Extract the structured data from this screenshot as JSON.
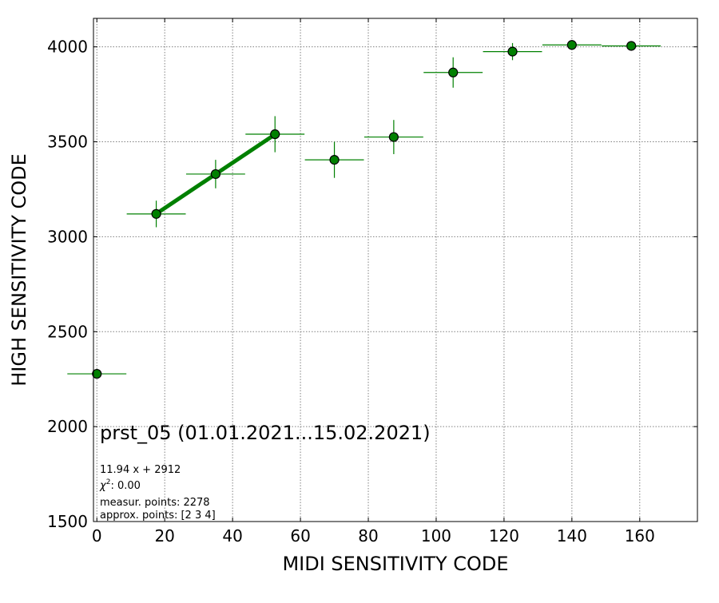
{
  "chart_data": {
    "type": "scatter",
    "title": "prst_05 (01.01.2021...15.02.2021)",
    "xlabel": "MIDI SENSITIVITY CODE",
    "ylabel": "HIGH SENSITIVITY CODE",
    "xlim": [
      -1,
      177
    ],
    "ylim": [
      1500,
      4150
    ],
    "xticks": [
      0,
      20,
      40,
      60,
      80,
      100,
      120,
      140,
      160
    ],
    "yticks": [
      1500,
      2000,
      2500,
      3000,
      3500,
      4000
    ],
    "grid": true,
    "colors": {
      "marker_fill": "#008000",
      "marker_edge": "#000000",
      "errorbar": "#008000",
      "fit_line": "#008000",
      "grid": "#808080"
    },
    "series": [
      {
        "points": [
          {
            "x": 0,
            "y": 2278,
            "xerr": 8.7,
            "yerr": 0
          },
          {
            "x": 17.5,
            "y": 3120,
            "xerr": 8.7,
            "yerr": 70
          },
          {
            "x": 35,
            "y": 3330,
            "xerr": 8.7,
            "yerr": 75
          },
          {
            "x": 52.5,
            "y": 3540,
            "xerr": 8.7,
            "yerr": 95
          },
          {
            "x": 70,
            "y": 3405,
            "xerr": 8.7,
            "yerr": 95
          },
          {
            "x": 87.5,
            "y": 3525,
            "xerr": 8.7,
            "yerr": 90
          },
          {
            "x": 105,
            "y": 3865,
            "xerr": 8.7,
            "yerr": 80
          },
          {
            "x": 122.5,
            "y": 3975,
            "xerr": 8.7,
            "yerr": 45
          },
          {
            "x": 140,
            "y": 4010,
            "xerr": 8.7,
            "yerr": 25
          },
          {
            "x": 157.5,
            "y": 4005,
            "xerr": 8.7,
            "yerr": 25
          }
        ]
      }
    ],
    "fit": {
      "slope": 11.94,
      "intercept": 2912,
      "x_range": [
        17.5,
        52.5
      ]
    },
    "annotations": {
      "equation": "11.94 x + 2912",
      "chi2_symbol": "χ",
      "chi2_exp": "2",
      "chi2_value": ": 0.00",
      "measur_points": "measur. points: 2278",
      "approx_points": "approx. points: [2 3 4]"
    }
  }
}
